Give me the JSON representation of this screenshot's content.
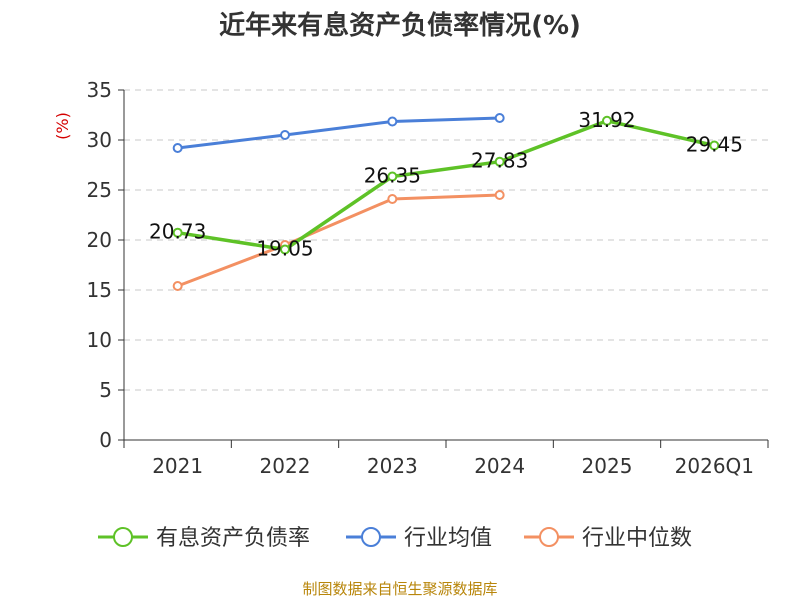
{
  "chart_data": {
    "type": "line",
    "title": "近年来有息资产负债率情况(%)",
    "ylabel": "(%)",
    "xlabel": "",
    "categories": [
      "2021",
      "2022",
      "2023",
      "2024",
      "2025",
      "2026Q1"
    ],
    "ylim": [
      0,
      35
    ],
    "yticks": [
      0,
      5,
      10,
      15,
      20,
      25,
      30,
      35
    ],
    "grid": true,
    "legend_position": "bottom",
    "series": [
      {
        "name": "有息资产负债率",
        "color": "#5ec227",
        "values": [
          20.73,
          19.05,
          26.35,
          27.83,
          31.92,
          29.45
        ],
        "labels": [
          "20.73",
          "19.05",
          "26.35",
          "27.83",
          "31.92",
          "29.45"
        ]
      },
      {
        "name": "行业均值",
        "color": "#4a7fd8",
        "values": [
          29.2,
          30.5,
          31.85,
          32.2,
          null,
          null
        ]
      },
      {
        "name": "行业中位数",
        "color": "#f39062",
        "values": [
          15.4,
          19.5,
          24.1,
          24.5,
          null,
          null
        ]
      }
    ]
  },
  "source_text": "制图数据来自恒生聚源数据库"
}
